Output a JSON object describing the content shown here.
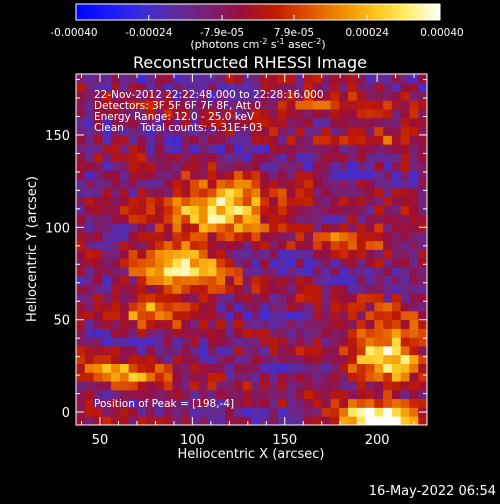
{
  "colorbar": {
    "ticks": [
      "-0.00040",
      "-0.00024",
      "-7.9e-05",
      "7.9e-05",
      "0.00024",
      "0.00040"
    ],
    "values": [
      -0.0004,
      -0.00024,
      -7.9e-05,
      7.9e-05,
      0.00024,
      0.0004
    ],
    "unit_prefix": "(photons cm",
    "unit_exp1": "-2",
    "unit_mid1": " s",
    "unit_exp2": "-1",
    "unit_mid2": " asec",
    "unit_exp3": "-2",
    "unit_suffix": ")",
    "range": [
      -0.0004,
      0.0004
    ],
    "stops": [
      "#0000ff",
      "#1a1aff",
      "#3e2bd9",
      "#5e2ba0",
      "#7a1f70",
      "#9a0f3a",
      "#c01a00",
      "#e05000",
      "#f08a00",
      "#ffc21a",
      "#ffee66",
      "#ffffff"
    ]
  },
  "chart_data": {
    "type": "heatmap",
    "title": "Reconstructed RHESSI Image",
    "xlabel": "Heliocentric X (arcsec)",
    "ylabel": "Heliocentric Y (arcsec)",
    "xlim": [
      37,
      227
    ],
    "ylim": [
      -7,
      183
    ],
    "xticks": [
      50,
      100,
      150,
      200
    ],
    "yticks": [
      0,
      50,
      100,
      150
    ],
    "info": [
      "22-Nov-2012 22:22:48.000 to 22:28:16.000",
      "Detectors: 3F 5F 6F 7F 8F, Att 0",
      "Energy Range: 12.0 - 25.0 keV",
      "Clean     Total counts: 5.31E+03"
    ],
    "peak_label": "Position of Peak = [198,-4]",
    "peak": [
      198,
      -4
    ],
    "grid": "40x40 pixels, 4.75 arcsec",
    "bright_regions": [
      {
        "x": 110,
        "y": 110,
        "note": "bright band"
      },
      {
        "x": 100,
        "y": 80,
        "note": "bright region"
      },
      {
        "x": 200,
        "y": 30,
        "note": "bright region"
      },
      {
        "x": 200,
        "y": -4,
        "note": "peak"
      }
    ]
  },
  "footer": {
    "timestamp": "16-May-2022 06:54"
  }
}
